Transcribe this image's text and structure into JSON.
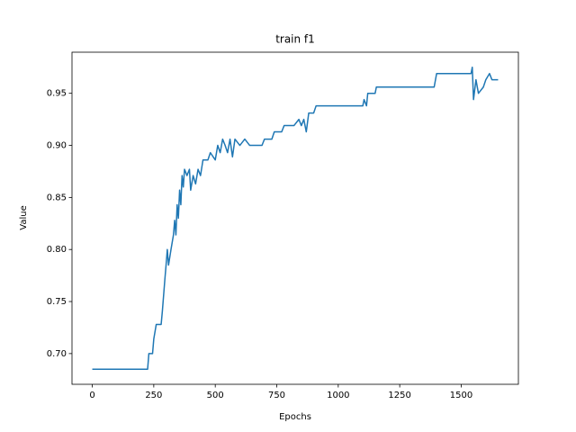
{
  "chart_data": {
    "type": "line",
    "title": "train f1",
    "x_label": "Epochs",
    "y_label": "Value",
    "color": "#1f77b4",
    "x": [
      0,
      225,
      230,
      245,
      250,
      260,
      280,
      285,
      295,
      300,
      305,
      310,
      320,
      330,
      335,
      340,
      345,
      350,
      355,
      360,
      365,
      370,
      375,
      385,
      395,
      400,
      410,
      420,
      430,
      440,
      450,
      470,
      480,
      500,
      510,
      520,
      530,
      540,
      550,
      560,
      570,
      580,
      600,
      620,
      640,
      690,
      700,
      730,
      740,
      770,
      780,
      820,
      840,
      850,
      860,
      870,
      880,
      900,
      910,
      1100,
      1105,
      1115,
      1120,
      1150,
      1155,
      1390,
      1400,
      1540,
      1545,
      1550,
      1560,
      1570,
      1590,
      1600,
      1615,
      1625,
      1650
    ],
    "values": [
      0.685,
      0.685,
      0.7,
      0.7,
      0.714,
      0.728,
      0.728,
      0.741,
      0.771,
      0.785,
      0.8,
      0.785,
      0.8,
      0.814,
      0.828,
      0.814,
      0.843,
      0.83,
      0.857,
      0.843,
      0.871,
      0.86,
      0.877,
      0.871,
      0.877,
      0.857,
      0.871,
      0.863,
      0.877,
      0.871,
      0.886,
      0.886,
      0.893,
      0.886,
      0.9,
      0.893,
      0.906,
      0.9,
      0.893,
      0.906,
      0.889,
      0.906,
      0.9,
      0.906,
      0.9,
      0.9,
      0.906,
      0.906,
      0.913,
      0.913,
      0.919,
      0.919,
      0.925,
      0.919,
      0.925,
      0.913,
      0.931,
      0.931,
      0.938,
      0.938,
      0.944,
      0.938,
      0.95,
      0.95,
      0.956,
      0.956,
      0.969,
      0.969,
      0.975,
      0.944,
      0.963,
      0.95,
      0.956,
      0.963,
      0.969,
      0.963,
      0.963
    ],
    "xlim": [
      -82.5,
      1732.5
    ],
    "ylim": [
      0.6705,
      0.9895
    ],
    "xticks": [
      0,
      250,
      500,
      750,
      1000,
      1250,
      1500
    ],
    "yticks": [
      {
        "value": 0.7,
        "label": "0.70"
      },
      0.75,
      {
        "value": 0.8,
        "label": "0.80"
      },
      0.85,
      {
        "value": 0.9,
        "label": "0.90"
      },
      0.95
    ]
  }
}
